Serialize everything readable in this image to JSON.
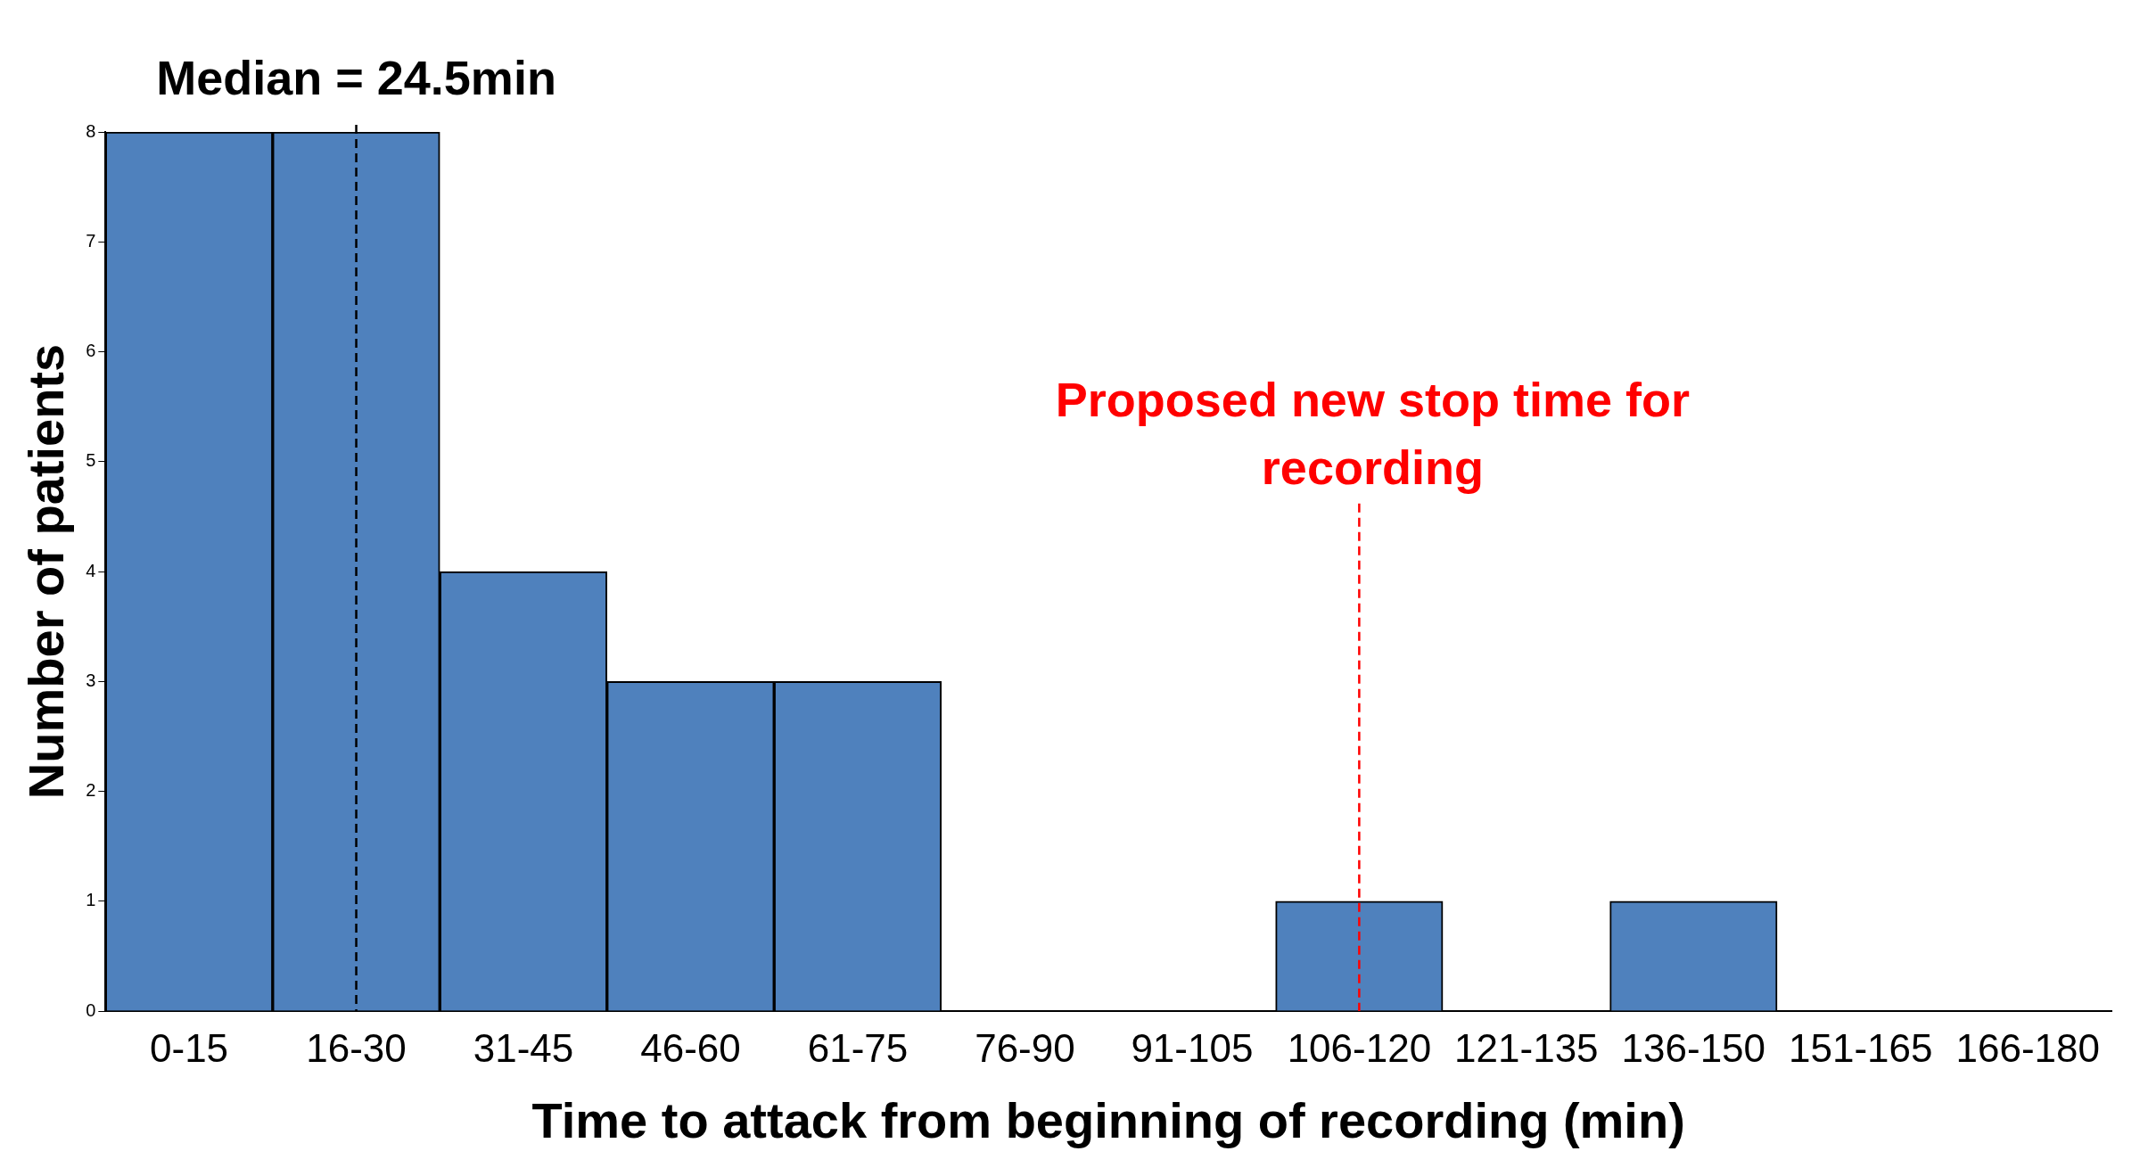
{
  "chart_data": {
    "type": "bar",
    "xlabel": "Time to attack from beginning of recording (min)",
    "ylabel": "Number of patients",
    "categories": [
      "0-15",
      "16-30",
      "31-45",
      "46-60",
      "61-75",
      "76-90",
      "91-105",
      "106-120",
      "121-135",
      "136-150",
      "151-165",
      "166-180"
    ],
    "values": [
      8,
      8,
      4,
      3,
      3,
      0,
      0,
      1,
      0,
      1,
      0,
      0
    ],
    "color": "#4f81bd",
    "ylim": [
      0,
      8
    ],
    "yticks": [
      0,
      1,
      2,
      3,
      4,
      5,
      6,
      7,
      8
    ],
    "grid": false,
    "legend": false,
    "ref_lines": [
      {
        "axis": "x",
        "value": "16-30",
        "label": "Median = 24.5min",
        "color": "#000000",
        "line_style": "dashed"
      },
      {
        "axis": "x",
        "value": "106-120",
        "label": "Proposed new stop time for recording",
        "color": "#ff0000",
        "line_style": "dashed"
      }
    ]
  }
}
